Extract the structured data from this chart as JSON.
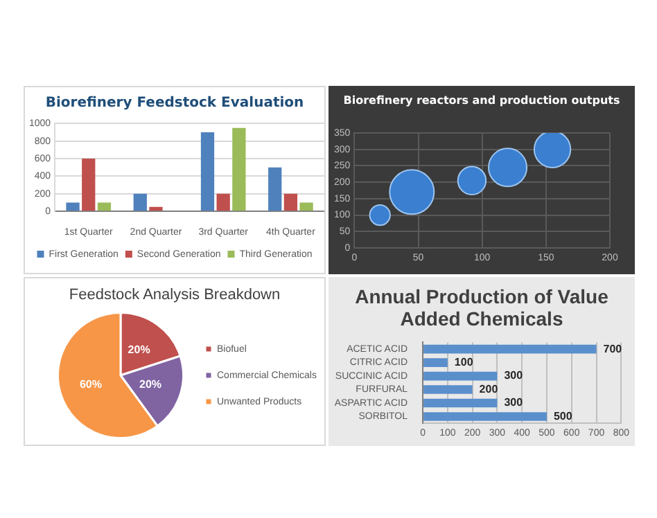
{
  "chart_data": [
    {
      "type": "bar",
      "title": "Biorefinery Feedstock Evaluation",
      "categories": [
        "1st Quarter",
        "2nd Quarter",
        "3rd Quarter",
        "4th Quarter"
      ],
      "series": [
        {
          "name": "First Generation",
          "color": "#4f81bd",
          "values": [
            100,
            200,
            900,
            500
          ]
        },
        {
          "name": "Second Generation",
          "color": "#c0504d",
          "values": [
            600,
            50,
            200,
            200
          ]
        },
        {
          "name": "Third Generation",
          "color": "#9bbb59",
          "values": [
            100,
            0,
            950,
            100
          ]
        }
      ],
      "ylim": [
        0,
        1000
      ],
      "yticks": [
        0,
        200,
        400,
        600,
        800,
        1000
      ],
      "grid": "y",
      "legend": "bottom"
    },
    {
      "type": "bubble",
      "title": "Biorefinery reactors and production outputs",
      "x": [
        20,
        45,
        92,
        120,
        155
      ],
      "values": [
        100,
        170,
        205,
        245,
        300
      ],
      "sizes": [
        0.21,
        1,
        0.4,
        0.74,
        0.67
      ],
      "color": "#3a7fd0",
      "xlim": [
        0,
        200
      ],
      "xticks": [
        0,
        50,
        100,
        150,
        200
      ],
      "ylim": [
        0,
        350
      ],
      "yticks": [
        0,
        50,
        100,
        150,
        200,
        250,
        300,
        350
      ],
      "grid": true
    },
    {
      "type": "pie",
      "title": "Feedstock Analysis Breakdown",
      "categories": [
        "Biofuel",
        "Commercial Chemicals",
        "Unwanted Products"
      ],
      "values": [
        20,
        20,
        60
      ],
      "colors": [
        "#c0504d",
        "#8064a2",
        "#f79646"
      ],
      "value_labels": [
        "20%",
        "20%",
        "60%"
      ],
      "legend": "right"
    },
    {
      "type": "bar",
      "orientation": "horizontal",
      "title": "Annual Production of Value Added Chemicals",
      "categories": [
        "ACETIC ACID",
        "CITRIC ACID",
        "SUCCINIC ACID",
        "FURFURAL",
        "ASPARTIC ACID",
        "SORBITOL"
      ],
      "values": [
        700,
        100,
        300,
        200,
        300,
        500
      ],
      "color": "#5b8fcc",
      "xlim": [
        0,
        800
      ],
      "xticks": [
        0,
        100,
        200,
        300,
        400,
        500,
        600,
        700,
        800
      ],
      "grid": "x",
      "data_labels": true
    }
  ]
}
